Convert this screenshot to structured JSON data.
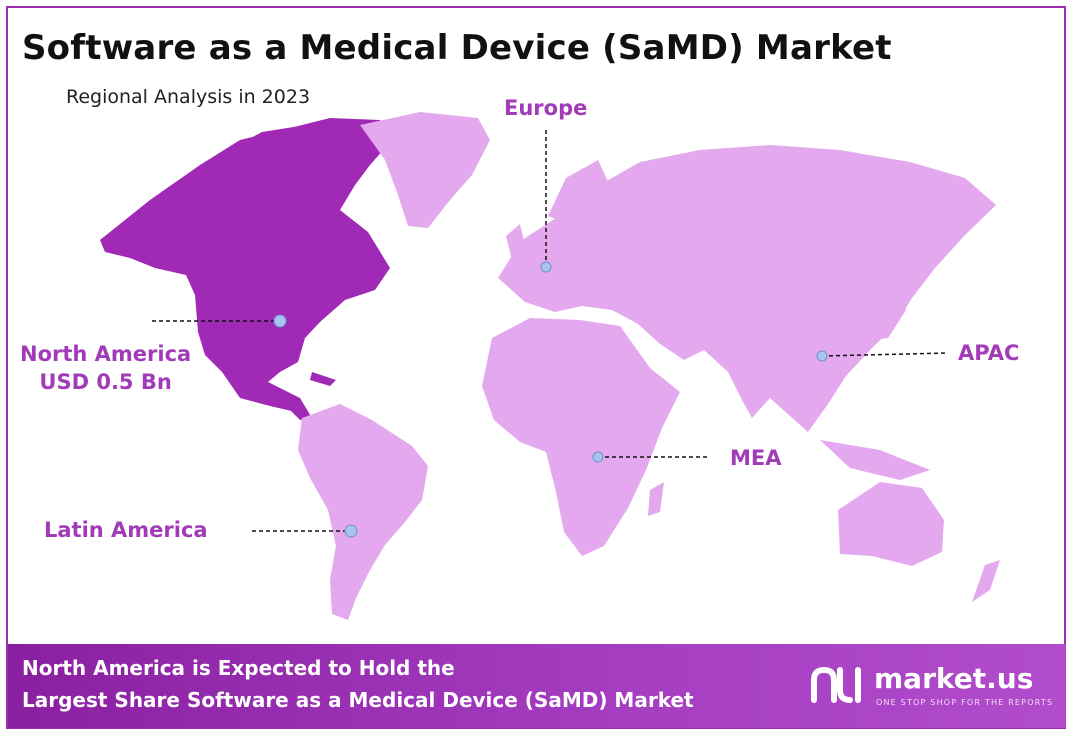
{
  "header": {
    "title": "Software as a Medical Device (SaMD) Market",
    "subtitle": "Regional Analysis in 2023"
  },
  "colors": {
    "accent": "#9b2fae",
    "land_highlight": "#a029b5",
    "land_default": "#e4a8ee",
    "marker": "#a8c4ee",
    "label": "#a23bb8"
  },
  "regions": {
    "north_america": {
      "name": "North America",
      "value": "USD 0.5 Bn"
    },
    "europe": {
      "name": "Europe"
    },
    "apac": {
      "name": "APAC"
    },
    "mea": {
      "name": "MEA"
    },
    "latin_america": {
      "name": "Latin America"
    }
  },
  "banner": {
    "line1": "North America is Expected to Hold the",
    "line2": "Largest Share Software as a Medical Device (SaMD) Market"
  },
  "brand": {
    "name": "market.us",
    "tagline": "ONE STOP SHOP FOR THE REPORTS"
  }
}
